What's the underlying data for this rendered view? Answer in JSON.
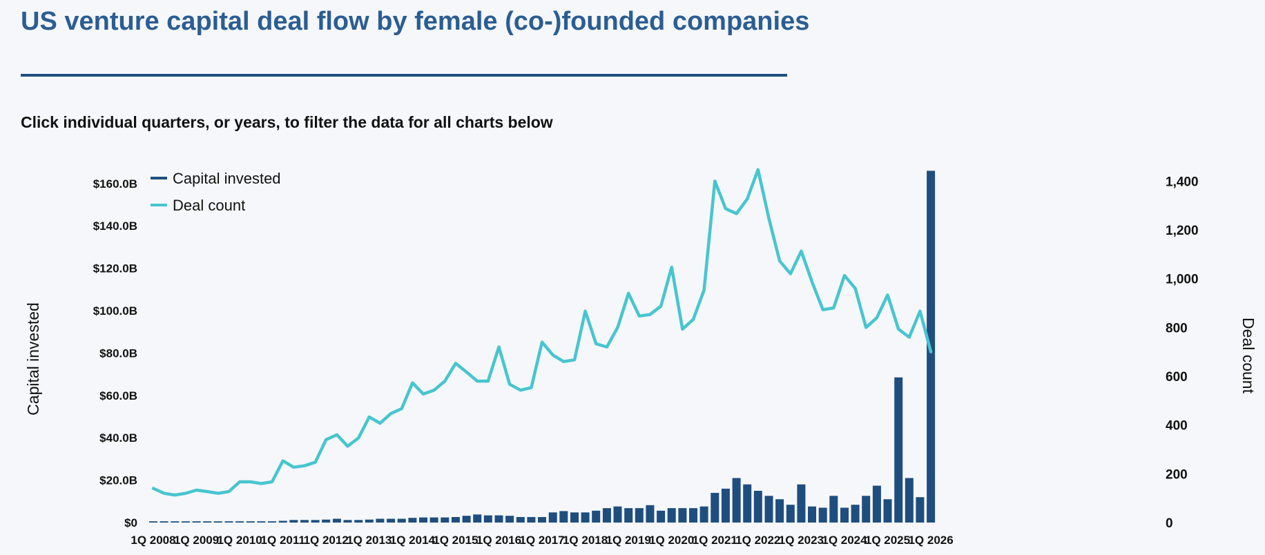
{
  "header": {
    "title": "US venture capital deal flow by female (co-)founded companies",
    "subtitle": "Click individual quarters, or years, to filter the data for all charts below"
  },
  "colors": {
    "capital": "#1f4e7e",
    "deals": "#47c5cf",
    "title": "#2b5d92"
  },
  "chart_data": {
    "type": "bar",
    "title": "US venture capital deal flow by female (co-)founded companies",
    "x": [
      "1Q 2008",
      "2Q 2008",
      "3Q 2008",
      "4Q 2008",
      "1Q 2009",
      "2Q 2009",
      "3Q 2009",
      "4Q 2009",
      "1Q 2010",
      "2Q 2010",
      "3Q 2010",
      "4Q 2010",
      "1Q 2011",
      "2Q 2011",
      "3Q 2011",
      "4Q 2011",
      "1Q 2012",
      "2Q 2012",
      "3Q 2012",
      "4Q 2012",
      "1Q 2013",
      "2Q 2013",
      "3Q 2013",
      "4Q 2013",
      "1Q 2014",
      "2Q 2014",
      "3Q 2014",
      "4Q 2014",
      "1Q 2015",
      "2Q 2015",
      "3Q 2015",
      "4Q 2015",
      "1Q 2016",
      "2Q 2016",
      "3Q 2016",
      "4Q 2016",
      "1Q 2017",
      "2Q 2017",
      "3Q 2017",
      "4Q 2017",
      "1Q 2018",
      "2Q 2018",
      "3Q 2018",
      "4Q 2018",
      "1Q 2019",
      "2Q 2019",
      "3Q 2019",
      "4Q 2019",
      "1Q 2020",
      "2Q 2020",
      "3Q 2020",
      "4Q 2020",
      "1Q 2021",
      "2Q 2021",
      "3Q 2021",
      "4Q 2021",
      "1Q 2022",
      "2Q 2022",
      "3Q 2022",
      "4Q 2022",
      "1Q 2023",
      "2Q 2023",
      "3Q 2023",
      "4Q 2023",
      "1Q 2024",
      "2Q 2024",
      "3Q 2024",
      "4Q 2024",
      "1Q 2025",
      "2Q 2025",
      "3Q 2025",
      "4Q 2025",
      "1Q 2026"
    ],
    "x_tick_labels": [
      "1Q 2008",
      "1Q 2009",
      "1Q 2010",
      "1Q 2011",
      "1Q 2012",
      "1Q 2013",
      "1Q 2014",
      "1Q 2015",
      "1Q 2016",
      "1Q 2017",
      "1Q 2018",
      "1Q 2019",
      "1Q 2020",
      "1Q 2021",
      "1Q 2022",
      "1Q 2023",
      "1Q 2024",
      "1Q 2025",
      "1Q 2026"
    ],
    "series": [
      {
        "name": "Capital invested",
        "type": "bar",
        "axis": "left",
        "unit": "$B",
        "values": [
          0.6,
          0.6,
          0.6,
          0.6,
          0.6,
          0.6,
          0.6,
          0.6,
          0.6,
          0.6,
          0.6,
          0.6,
          0.8,
          1.2,
          1.2,
          1.2,
          1.4,
          1.8,
          1.2,
          1.2,
          1.4,
          1.8,
          1.8,
          1.8,
          2.2,
          2.4,
          2.4,
          2.4,
          2.6,
          3.2,
          3.8,
          3.4,
          3.4,
          3.2,
          2.6,
          2.6,
          2.6,
          4.8,
          5.4,
          4.8,
          4.8,
          5.6,
          6.8,
          7.6,
          6.8,
          6.8,
          8.2,
          5.6,
          6.8,
          6.8,
          6.8,
          7.6,
          14.0,
          16.0,
          21.0,
          18.0,
          15.0,
          12.6,
          11.0,
          8.4,
          18.0,
          7.6,
          7.0,
          12.6,
          7.0,
          8.4,
          12.6,
          17.4,
          11.0,
          68.5,
          21.0,
          12.0,
          166.0
        ]
      },
      {
        "name": "Deal count",
        "type": "line",
        "axis": "right",
        "values": [
          140,
          120,
          113,
          120,
          133,
          127,
          120,
          127,
          167,
          167,
          160,
          167,
          253,
          227,
          233,
          247,
          340,
          360,
          313,
          347,
          433,
          407,
          447,
          467,
          573,
          527,
          543,
          580,
          653,
          617,
          580,
          580,
          720,
          567,
          543,
          553,
          740,
          687,
          660,
          667,
          867,
          733,
          720,
          800,
          940,
          847,
          853,
          887,
          1047,
          793,
          833,
          953,
          1400,
          1287,
          1267,
          1327,
          1447,
          1247,
          1073,
          1020,
          1113,
          987,
          873,
          880,
          1013,
          960,
          800,
          840,
          933,
          793,
          760,
          867,
          700
        ]
      }
    ],
    "y_left": {
      "label": "Capital invested",
      "ticks": [
        "$0",
        "$20.0B",
        "$40.0B",
        "$60.0B",
        "$80.0B",
        "$100.0B",
        "$120.0B",
        "$140.0B",
        "$160.0B"
      ],
      "range": [
        0,
        165
      ]
    },
    "y_right": {
      "label": "Deal count",
      "ticks": [
        "0",
        "200",
        "400",
        "600",
        "800",
        "1,000",
        "1,200",
        "1,400"
      ],
      "range": [
        0,
        1440
      ]
    },
    "legend": {
      "placement": "top-left",
      "entries": [
        "Capital invested",
        "Deal count"
      ]
    },
    "grid": false
  }
}
